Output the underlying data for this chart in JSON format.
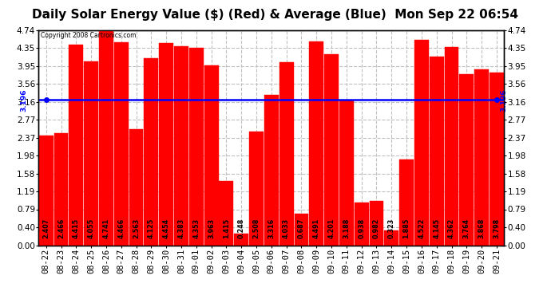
{
  "title": "Daily Solar Energy Value ($) (Red) & Average (Blue)  Mon Sep 22 06:54",
  "copyright": "Copyright 2008 Cartronics.com",
  "average": 3.196,
  "categories": [
    "08-22",
    "08-23",
    "08-24",
    "08-25",
    "08-26",
    "08-27",
    "08-28",
    "08-29",
    "08-30",
    "08-31",
    "09-01",
    "09-02",
    "09-03",
    "09-04",
    "09-05",
    "09-06",
    "09-07",
    "09-08",
    "09-09",
    "09-10",
    "09-11",
    "09-12",
    "09-13",
    "09-14",
    "09-15",
    "09-16",
    "09-17",
    "09-18",
    "09-19",
    "09-20",
    "09-21"
  ],
  "values": [
    2.407,
    2.466,
    4.415,
    4.055,
    4.741,
    4.466,
    2.563,
    4.125,
    4.454,
    4.383,
    4.353,
    3.963,
    1.415,
    0.248,
    2.508,
    3.316,
    4.033,
    0.687,
    4.491,
    4.201,
    3.188,
    0.938,
    0.982,
    0.323,
    1.885,
    4.522,
    4.145,
    4.362,
    3.764,
    3.868,
    3.798
  ],
  "bar_color": "#ff0000",
  "avg_line_color": "#0000ff",
  "bg_color": "#ffffff",
  "plot_bg_color": "#ffffff",
  "grid_color": "#c0c0c0",
  "yticks": [
    0.0,
    0.4,
    0.79,
    1.19,
    1.58,
    1.98,
    2.37,
    2.77,
    3.16,
    3.56,
    3.95,
    4.35,
    4.74
  ],
  "ymax": 4.74,
  "ymin": 0.0,
  "title_fontsize": 11,
  "label_fontsize": 5.8,
  "tick_fontsize": 7.5
}
